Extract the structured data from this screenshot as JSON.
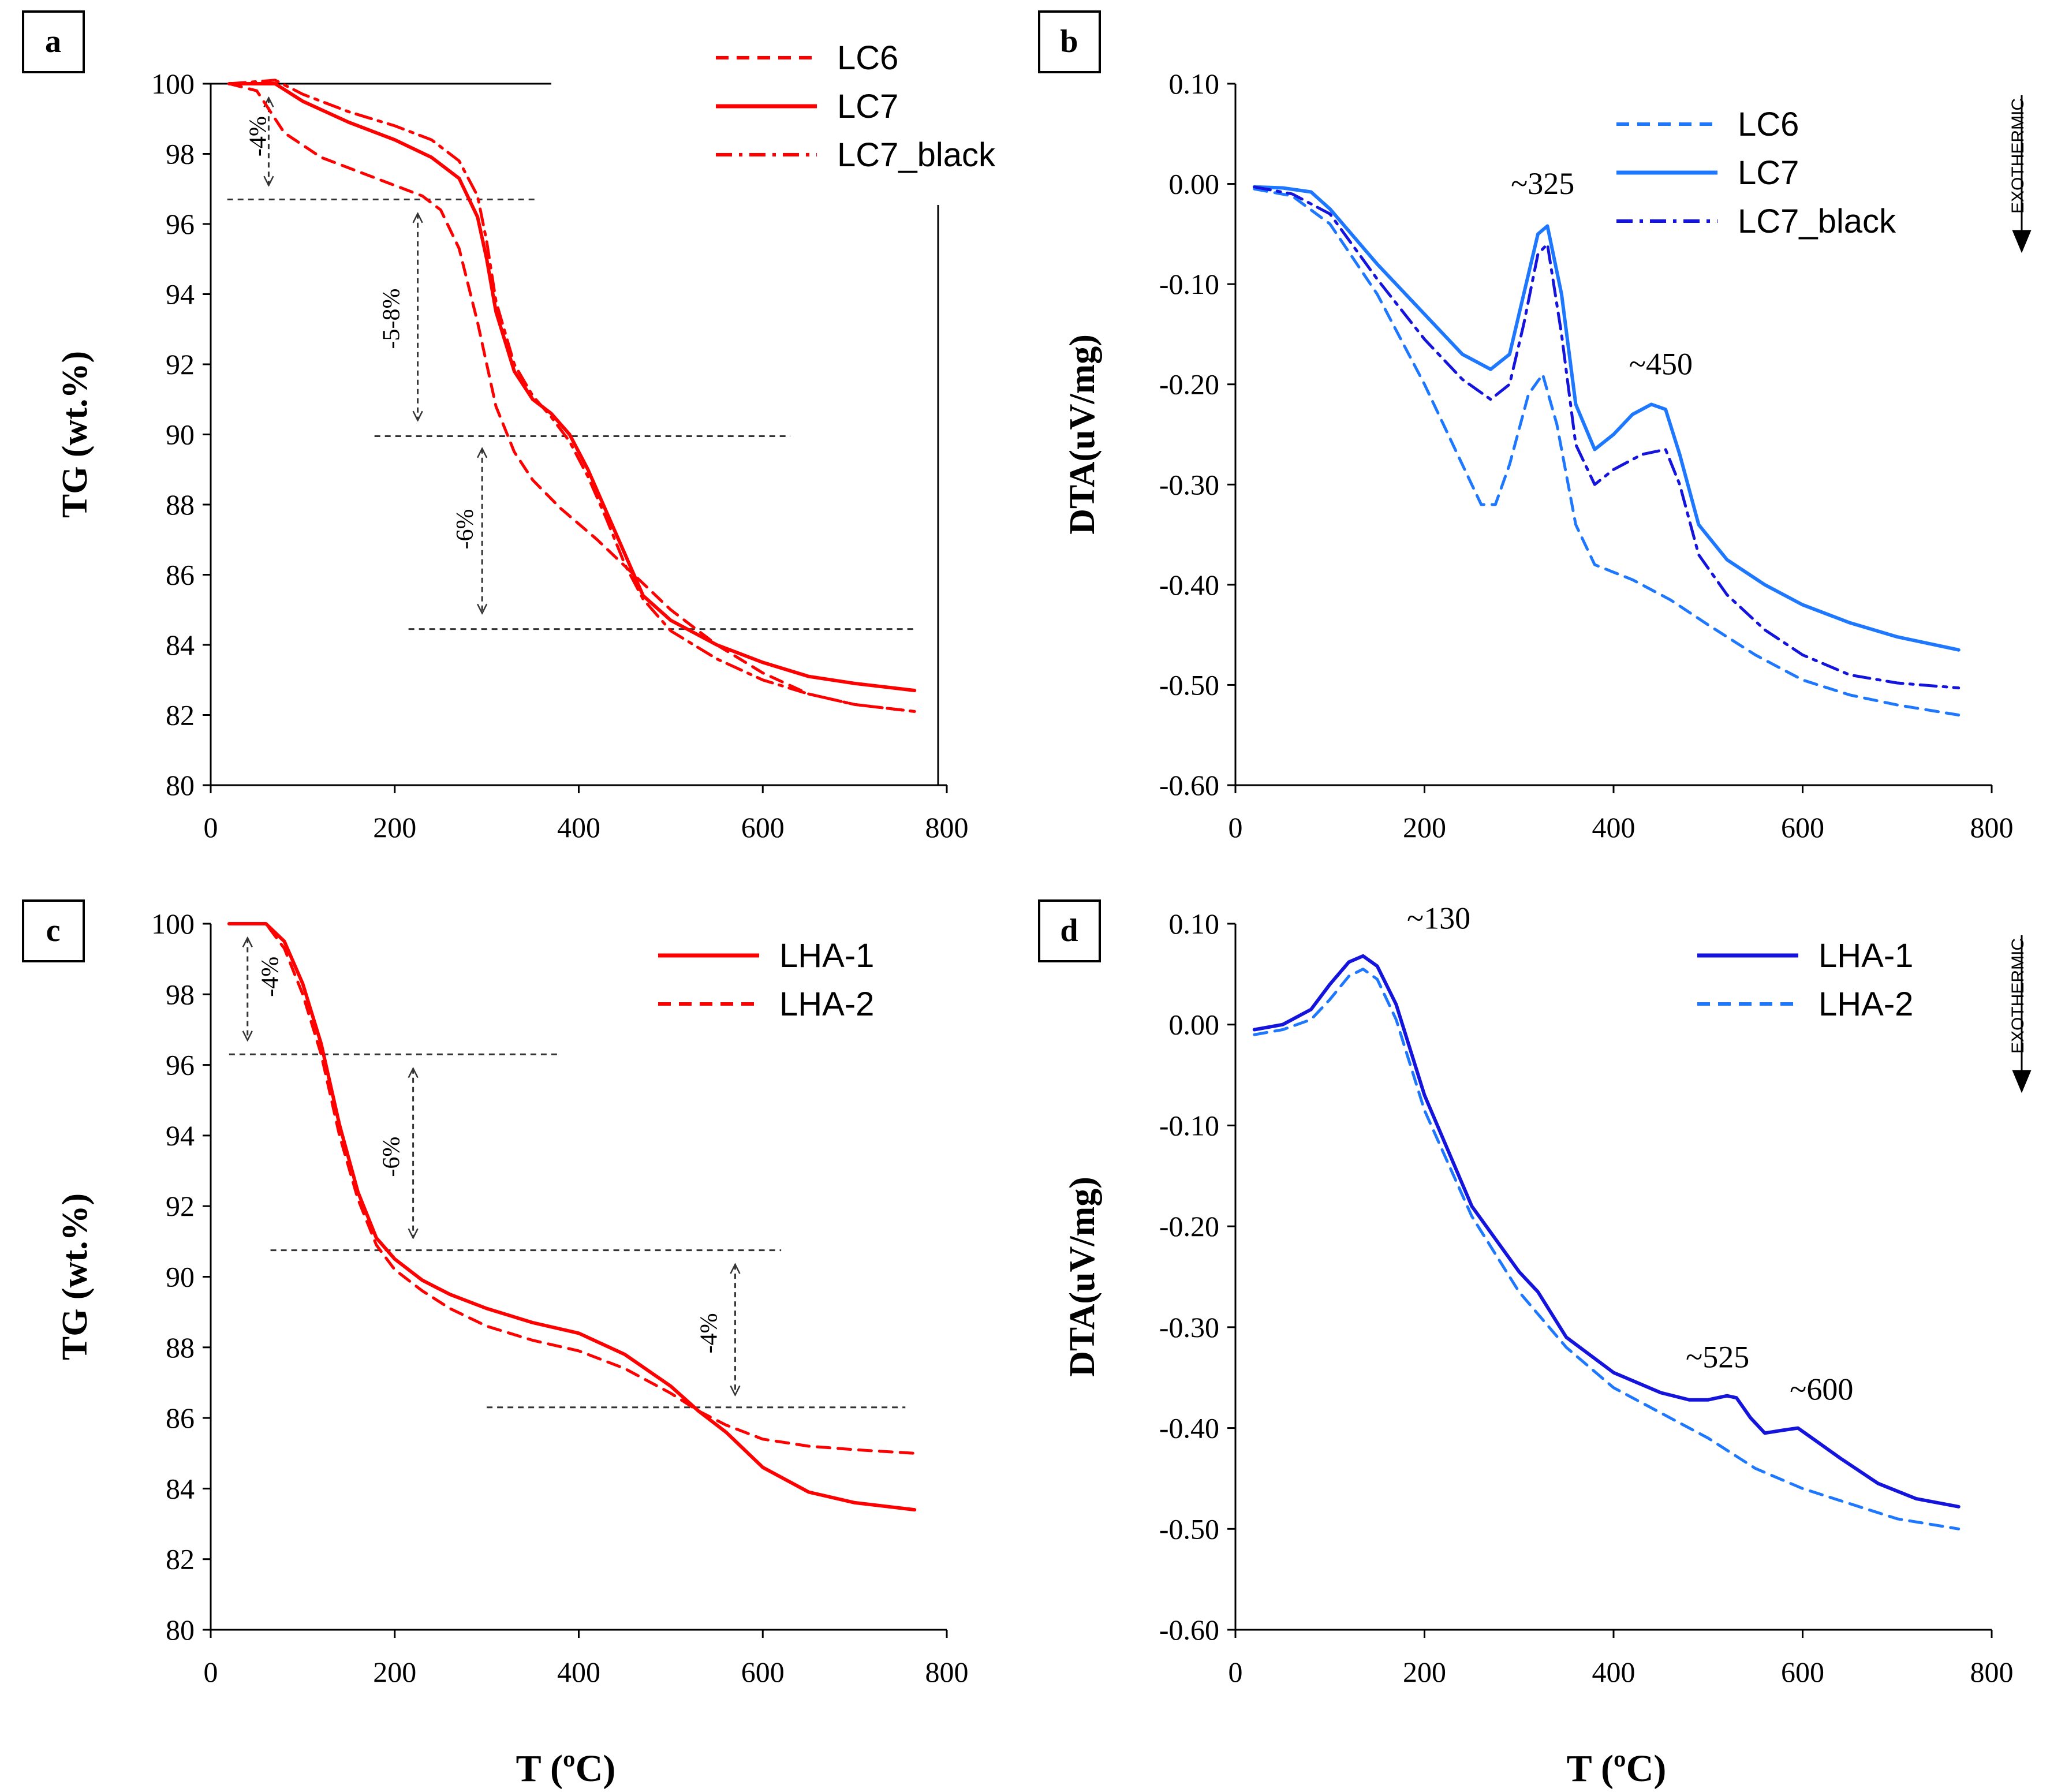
{
  "figure": {
    "x_axis_title": "T (ºC)"
  },
  "chart_data": [
    {
      "id": "a",
      "panel_label": "a",
      "type": "line",
      "xlabel": "T (ºC)",
      "ylabel": "TG (wt.%)",
      "xlim": [
        0,
        800
      ],
      "ylim": [
        80,
        100
      ],
      "xticks": [
        0,
        200,
        400,
        600,
        800
      ],
      "yticks": [
        80,
        82,
        84,
        86,
        88,
        90,
        92,
        94,
        96,
        98,
        100
      ],
      "tick_decimals": 0,
      "legend_position": "top-right",
      "grid": false,
      "series": [
        {
          "name": "LC6",
          "color": "#FF0000",
          "dash": "dash",
          "x": [
            20,
            50,
            80,
            120,
            160,
            200,
            230,
            250,
            270,
            290,
            310,
            330,
            350,
            380,
            420,
            460,
            500,
            550,
            600,
            650,
            700,
            765
          ],
          "y": [
            100,
            99.8,
            98.6,
            97.9,
            97.5,
            97.1,
            96.8,
            96.4,
            95.3,
            93.2,
            90.8,
            89.5,
            88.7,
            87.9,
            87.0,
            86.0,
            85.0,
            84.0,
            83.2,
            82.6,
            82.3,
            82.1
          ]
        },
        {
          "name": "LC7",
          "color": "#FF0000",
          "dash": "solid",
          "x": [
            20,
            70,
            100,
            150,
            200,
            240,
            270,
            290,
            300,
            310,
            330,
            350,
            370,
            390,
            410,
            430,
            450,
            470,
            500,
            550,
            600,
            650,
            700,
            765
          ],
          "y": [
            100,
            100,
            99.5,
            98.9,
            98.4,
            97.9,
            97.3,
            96.2,
            95.0,
            93.5,
            91.8,
            91.0,
            90.6,
            90.0,
            89.0,
            87.8,
            86.6,
            85.4,
            84.7,
            84.0,
            83.5,
            83.1,
            82.9,
            82.7
          ]
        },
        {
          "name": "LC7_black",
          "color": "#FF0000",
          "dash": "dashdot",
          "x": [
            20,
            70,
            100,
            150,
            200,
            240,
            270,
            290,
            300,
            310,
            330,
            350,
            370,
            390,
            410,
            430,
            450,
            470,
            500,
            550,
            600,
            650,
            700,
            765
          ],
          "y": [
            100,
            100.1,
            99.7,
            99.2,
            98.8,
            98.4,
            97.8,
            96.8,
            95.5,
            93.8,
            92.0,
            91.1,
            90.5,
            89.8,
            88.8,
            87.6,
            86.3,
            85.3,
            84.4,
            83.6,
            83.0,
            82.6,
            82.3,
            82.1
          ]
        }
      ],
      "annotations": [
        {
          "text": "-4%",
          "x": 60,
          "y": 98.5,
          "rotate": -90
        },
        {
          "text": "-5-8%",
          "x": 205,
          "y": 93.3,
          "rotate": -90
        },
        {
          "text": "-6%",
          "x": 285,
          "y": 87.3,
          "rotate": -90
        }
      ],
      "guides": [
        {
          "x1": 18,
          "x2": 355,
          "y": 96.7
        },
        {
          "x1": 178,
          "x2": 630,
          "y": 89.95
        },
        {
          "x1": 215,
          "x2": 765,
          "y": 84.45
        }
      ],
      "arrows": [
        {
          "x": 63,
          "y1": 99.6,
          "y2": 97.1
        },
        {
          "x": 225,
          "y1": 96.3,
          "y2": 90.4
        },
        {
          "x": 295,
          "y1": 89.6,
          "y2": 84.9
        }
      ]
    },
    {
      "id": "b",
      "panel_label": "b",
      "type": "line",
      "xlabel": "T (ºC)",
      "ylabel": "DTA(uV/mg)",
      "xlim": [
        0,
        800
      ],
      "ylim": [
        -0.6,
        0.1
      ],
      "xticks": [
        0,
        200,
        400,
        600,
        800
      ],
      "yticks": [
        -0.6,
        -0.5,
        -0.4,
        -0.3,
        -0.2,
        -0.1,
        0.0,
        0.1
      ],
      "tick_decimals": 2,
      "legend_position": "top-right",
      "grid": false,
      "side_label": "EXOTHERMIC",
      "series": [
        {
          "name": "LC6",
          "color": "#1E78FF",
          "dash": "dash",
          "x": [
            20,
            60,
            100,
            150,
            200,
            240,
            260,
            275,
            290,
            310,
            325,
            340,
            360,
            380,
            420,
            460,
            500,
            550,
            600,
            650,
            700,
            765
          ],
          "y": [
            -0.005,
            -0.012,
            -0.04,
            -0.11,
            -0.2,
            -0.28,
            -0.32,
            -0.32,
            -0.28,
            -0.21,
            -0.19,
            -0.24,
            -0.34,
            -0.38,
            -0.395,
            -0.415,
            -0.44,
            -0.47,
            -0.495,
            -0.51,
            -0.52,
            -0.53
          ]
        },
        {
          "name": "LC7",
          "color": "#1E78FF",
          "dash": "solid",
          "x": [
            20,
            50,
            80,
            100,
            150,
            200,
            240,
            270,
            290,
            305,
            320,
            330,
            345,
            360,
            380,
            400,
            420,
            440,
            455,
            470,
            490,
            520,
            560,
            600,
            650,
            700,
            765
          ],
          "y": [
            -0.003,
            -0.004,
            -0.008,
            -0.025,
            -0.08,
            -0.13,
            -0.17,
            -0.185,
            -0.17,
            -0.11,
            -0.05,
            -0.042,
            -0.11,
            -0.22,
            -0.265,
            -0.25,
            -0.23,
            -0.22,
            -0.225,
            -0.27,
            -0.34,
            -0.375,
            -0.4,
            -0.42,
            -0.438,
            -0.452,
            -0.465
          ]
        },
        {
          "name": "LC7_black",
          "color": "#1414DC",
          "dash": "dashdot",
          "x": [
            20,
            60,
            100,
            150,
            200,
            240,
            270,
            290,
            305,
            320,
            330,
            345,
            360,
            380,
            400,
            430,
            455,
            470,
            490,
            520,
            560,
            600,
            650,
            700,
            765
          ],
          "y": [
            -0.003,
            -0.01,
            -0.03,
            -0.095,
            -0.155,
            -0.195,
            -0.215,
            -0.2,
            -0.14,
            -0.07,
            -0.06,
            -0.15,
            -0.26,
            -0.3,
            -0.285,
            -0.27,
            -0.265,
            -0.3,
            -0.37,
            -0.41,
            -0.445,
            -0.47,
            -0.49,
            -0.498,
            -0.503
          ]
        }
      ],
      "annotations": [
        {
          "text": "~325",
          "x": 325,
          "y": -0.01
        },
        {
          "text": "~450",
          "x": 450,
          "y": -0.19
        }
      ],
      "guides": [],
      "arrows": []
    },
    {
      "id": "c",
      "panel_label": "c",
      "type": "line",
      "xlabel": "T (ºC)",
      "ylabel": "TG (wt.%)",
      "xlim": [
        0,
        800
      ],
      "ylim": [
        80,
        100
      ],
      "xticks": [
        0,
        200,
        400,
        600,
        800
      ],
      "yticks": [
        80,
        82,
        84,
        86,
        88,
        90,
        92,
        94,
        96,
        98,
        100
      ],
      "tick_decimals": 0,
      "legend_position": "top-right",
      "grid": false,
      "series": [
        {
          "name": "LHA-1",
          "color": "#FF0000",
          "dash": "solid",
          "x": [
            20,
            60,
            80,
            100,
            120,
            140,
            160,
            180,
            200,
            230,
            260,
            300,
            350,
            400,
            450,
            500,
            530,
            560,
            600,
            650,
            700,
            765
          ],
          "y": [
            100,
            100,
            99.5,
            98.3,
            96.6,
            94.3,
            92.4,
            91.1,
            90.5,
            89.9,
            89.5,
            89.1,
            88.7,
            88.4,
            87.8,
            86.9,
            86.2,
            85.6,
            84.6,
            83.9,
            83.6,
            83.4
          ]
        },
        {
          "name": "LHA-2",
          "color": "#FF0000",
          "dash": "dash",
          "x": [
            20,
            60,
            80,
            100,
            120,
            140,
            160,
            180,
            200,
            230,
            260,
            300,
            350,
            400,
            450,
            500,
            530,
            560,
            600,
            650,
            700,
            765
          ],
          "y": [
            100,
            100,
            99.3,
            98.0,
            96.3,
            94.0,
            92.2,
            90.9,
            90.2,
            89.6,
            89.1,
            88.6,
            88.2,
            87.9,
            87.4,
            86.7,
            86.2,
            85.8,
            85.4,
            85.2,
            85.1,
            85.0
          ]
        }
      ],
      "annotations": [
        {
          "text": "-4%",
          "x": 73,
          "y": 98.5,
          "rotate": -90
        },
        {
          "text": "-6%",
          "x": 205,
          "y": 93.4,
          "rotate": -90
        },
        {
          "text": "-4%",
          "x": 550,
          "y": 88.4,
          "rotate": -90
        }
      ],
      "guides": [
        {
          "x1": 20,
          "x2": 380,
          "y": 96.3
        },
        {
          "x1": 65,
          "x2": 620,
          "y": 90.75
        },
        {
          "x1": 300,
          "x2": 755,
          "y": 86.3
        }
      ],
      "arrows": [
        {
          "x": 40,
          "y1": 99.6,
          "y2": 96.7
        },
        {
          "x": 220,
          "y1": 95.9,
          "y2": 91.1
        },
        {
          "x": 570,
          "y1": 90.35,
          "y2": 86.65
        }
      ]
    },
    {
      "id": "d",
      "panel_label": "d",
      "type": "line",
      "xlabel": "T (ºC)",
      "ylabel": "DTA(uV/mg)",
      "xlim": [
        0,
        800
      ],
      "ylim": [
        -0.6,
        0.1
      ],
      "xticks": [
        0,
        200,
        400,
        600,
        800
      ],
      "yticks": [
        -0.6,
        -0.5,
        -0.4,
        -0.3,
        -0.2,
        -0.1,
        0.0,
        0.1
      ],
      "tick_decimals": 2,
      "legend_position": "top-right",
      "grid": false,
      "side_label": "EXOTHERMIC",
      "series": [
        {
          "name": "LHA-1",
          "color": "#1414DC",
          "dash": "solid",
          "x": [
            20,
            50,
            80,
            100,
            120,
            135,
            150,
            170,
            200,
            250,
            300,
            320,
            350,
            400,
            450,
            480,
            500,
            520,
            530,
            545,
            560,
            580,
            595,
            610,
            640,
            680,
            720,
            765
          ],
          "y": [
            -0.005,
            0.0,
            0.015,
            0.04,
            0.062,
            0.068,
            0.058,
            0.02,
            -0.07,
            -0.18,
            -0.245,
            -0.265,
            -0.31,
            -0.345,
            -0.365,
            -0.372,
            -0.372,
            -0.368,
            -0.37,
            -0.39,
            -0.405,
            -0.402,
            -0.4,
            -0.41,
            -0.43,
            -0.455,
            -0.47,
            -0.478
          ]
        },
        {
          "name": "LHA-2",
          "color": "#1E78FF",
          "dash": "dash",
          "x": [
            20,
            50,
            80,
            100,
            120,
            135,
            150,
            170,
            200,
            250,
            300,
            350,
            400,
            450,
            500,
            550,
            600,
            650,
            700,
            765
          ],
          "y": [
            -0.01,
            -0.005,
            0.005,
            0.025,
            0.048,
            0.055,
            0.045,
            0.005,
            -0.085,
            -0.19,
            -0.265,
            -0.32,
            -0.36,
            -0.385,
            -0.41,
            -0.44,
            -0.46,
            -0.475,
            -0.49,
            -0.5
          ]
        }
      ],
      "annotations": [
        {
          "text": "~130",
          "x": 215,
          "y": 0.095
        },
        {
          "text": "~525",
          "x": 510,
          "y": -0.34
        },
        {
          "text": "~600",
          "x": 620,
          "y": -0.372
        }
      ],
      "guides": [],
      "arrows": []
    }
  ]
}
